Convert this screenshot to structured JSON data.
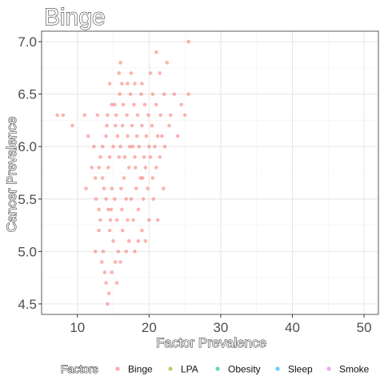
{
  "chart_data": {
    "type": "scatter",
    "title": "Binge",
    "xlabel": "Factor Prevalence",
    "ylabel": "Cancer Prevalence",
    "xlim": [
      5,
      52
    ],
    "ylim": [
      4.4,
      7.1
    ],
    "x_ticks": [
      10,
      20,
      30,
      40,
      50
    ],
    "y_ticks": [
      4.5,
      5.0,
      5.5,
      6.0,
      6.5,
      7.0
    ],
    "x_tick_labels": [
      "10",
      "20",
      "30",
      "40",
      "50"
    ],
    "y_tick_labels": [
      "4.5",
      "5.0",
      "5.5",
      "6.0",
      "6.5",
      "7.0"
    ],
    "grid": true,
    "legend": {
      "title": "Factors",
      "position": "bottom",
      "entries": [
        {
          "label": "Binge",
          "color": "#F8766D"
        },
        {
          "label": "LPA",
          "color": "#A3A500"
        },
        {
          "label": "Obesity",
          "color": "#00BF7D"
        },
        {
          "label": "Sleep",
          "color": "#00B0F6"
        },
        {
          "label": "Smoke",
          "color": "#E76BF3"
        }
      ]
    },
    "series": [
      {
        "name": "Binge",
        "color": "#F8766D",
        "points": [
          [
            7.2,
            6.3
          ],
          [
            8.0,
            6.3
          ],
          [
            9.3,
            6.2
          ],
          [
            11.0,
            6.3
          ],
          [
            11.2,
            5.6
          ],
          [
            11.5,
            6.1
          ],
          [
            12.0,
            5.8
          ],
          [
            12.3,
            6.0
          ],
          [
            12.5,
            5.0
          ],
          [
            12.6,
            5.5
          ],
          [
            13.0,
            5.2
          ],
          [
            13.2,
            5.9
          ],
          [
            13.4,
            4.9
          ],
          [
            13.6,
            5.0
          ],
          [
            13.8,
            4.8
          ],
          [
            14.0,
            4.7
          ],
          [
            14.1,
            6.2
          ],
          [
            14.2,
            4.5
          ],
          [
            14.3,
            5.4
          ],
          [
            14.4,
            4.6
          ],
          [
            14.5,
            6.6
          ],
          [
            14.6,
            5.3
          ],
          [
            14.8,
            4.8
          ],
          [
            15.0,
            5.1
          ],
          [
            15.2,
            6.4
          ],
          [
            15.3,
            4.9
          ],
          [
            15.5,
            4.7
          ],
          [
            15.8,
            6.7
          ],
          [
            16.0,
            4.9
          ],
          [
            16.3,
            5.2
          ],
          [
            16.8,
            5.0
          ],
          [
            17.5,
            6.7
          ],
          [
            18.0,
            5.0
          ],
          [
            18.5,
            5.1
          ],
          [
            19.0,
            5.2
          ],
          [
            19.5,
            5.1
          ],
          [
            20.0,
            5.3
          ],
          [
            21.0,
            6.9
          ],
          [
            21.2,
            5.3
          ],
          [
            21.5,
            6.7
          ],
          [
            22.0,
            5.6
          ],
          [
            22.5,
            6.8
          ],
          [
            23.0,
            6.3
          ],
          [
            24.0,
            6.1
          ],
          [
            24.5,
            6.4
          ],
          [
            25.5,
            7.0
          ],
          [
            25.5,
            6.5
          ],
          [
            25.0,
            6.3
          ],
          [
            23.5,
            6.5
          ],
          [
            22.8,
            6.2
          ],
          [
            12.5,
            5.7
          ],
          [
            13.0,
            5.4
          ],
          [
            13.5,
            5.7
          ],
          [
            12.8,
            6.3
          ],
          [
            13.2,
            5.3
          ],
          [
            14.0,
            5.5
          ],
          [
            14.5,
            5.2
          ],
          [
            14.3,
            5.8
          ],
          [
            14.8,
            5.6
          ],
          [
            15.2,
            5.5
          ],
          [
            15.5,
            5.3
          ],
          [
            15.8,
            5.9
          ],
          [
            16.2,
            5.4
          ],
          [
            16.5,
            5.7
          ],
          [
            16.8,
            5.5
          ],
          [
            17.0,
            5.3
          ],
          [
            17.2,
            5.8
          ],
          [
            17.5,
            5.5
          ],
          [
            17.8,
            5.3
          ],
          [
            18.2,
            5.6
          ],
          [
            18.5,
            5.4
          ],
          [
            18.8,
            5.7
          ],
          [
            19.2,
            5.5
          ],
          [
            19.5,
            5.8
          ],
          [
            19.8,
            5.6
          ],
          [
            20.2,
            5.9
          ],
          [
            20.5,
            5.7
          ],
          [
            21.0,
            5.8
          ],
          [
            20.8,
            6.0
          ],
          [
            13.0,
            5.8
          ],
          [
            13.5,
            6.0
          ],
          [
            14.0,
            6.1
          ],
          [
            14.5,
            5.9
          ],
          [
            15.0,
            6.0
          ],
          [
            15.3,
            6.2
          ],
          [
            15.6,
            6.1
          ],
          [
            16.0,
            6.0
          ],
          [
            16.3,
            6.2
          ],
          [
            16.6,
            5.9
          ],
          [
            17.0,
            6.1
          ],
          [
            17.3,
            6.0
          ],
          [
            17.6,
            6.2
          ],
          [
            18.0,
            5.9
          ],
          [
            18.3,
            6.1
          ],
          [
            18.6,
            6.0
          ],
          [
            19.0,
            6.2
          ],
          [
            19.3,
            5.9
          ],
          [
            19.6,
            6.1
          ],
          [
            20.0,
            6.0
          ],
          [
            20.4,
            6.2
          ],
          [
            21.2,
            6.1
          ],
          [
            21.5,
            5.9
          ],
          [
            21.8,
            6.1
          ],
          [
            22.2,
            6.0
          ],
          [
            14.2,
            6.3
          ],
          [
            14.8,
            6.4
          ],
          [
            15.4,
            6.3
          ],
          [
            15.9,
            6.5
          ],
          [
            16.4,
            6.4
          ],
          [
            16.9,
            6.3
          ],
          [
            17.4,
            6.5
          ],
          [
            17.9,
            6.4
          ],
          [
            18.4,
            6.3
          ],
          [
            18.9,
            6.5
          ],
          [
            19.4,
            6.4
          ],
          [
            19.9,
            6.3
          ],
          [
            20.5,
            6.5
          ],
          [
            21.0,
            6.4
          ],
          [
            21.6,
            6.3
          ],
          [
            22.1,
            6.5
          ],
          [
            16.2,
            6.6
          ],
          [
            17.0,
            6.6
          ],
          [
            18.0,
            6.6
          ],
          [
            19.0,
            6.6
          ],
          [
            20.2,
            6.7
          ],
          [
            16.0,
            6.8
          ],
          [
            17.2,
            5.1
          ],
          [
            15.7,
            5.0
          ],
          [
            14.7,
            5.4
          ],
          [
            18.1,
            5.8
          ],
          [
            16.1,
            5.6
          ],
          [
            17.7,
            6.0
          ],
          [
            19.1,
            5.7
          ],
          [
            20.6,
            5.5
          ],
          [
            13.7,
            5.6
          ]
        ]
      }
    ]
  }
}
